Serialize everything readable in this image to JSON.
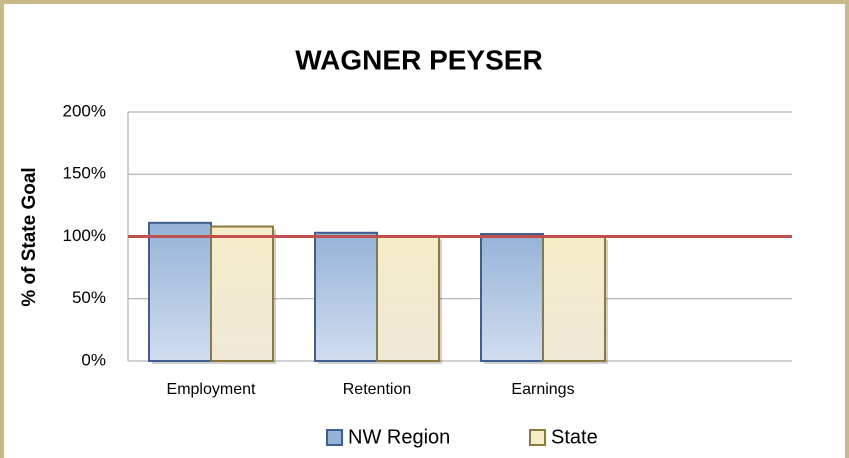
{
  "chart_data": {
    "type": "bar",
    "title": "WAGNER PEYSER",
    "y_label": "% of State Goal",
    "categories": [
      "Employment",
      "Retention",
      "Earnings",
      null
    ],
    "series": [
      {
        "name": "NW Region",
        "color": "#95b3d7",
        "values": [
          111,
          103,
          102,
          null
        ]
      },
      {
        "name": "State",
        "color": "#f5ecc8",
        "values": [
          108,
          100,
          100,
          null
        ]
      }
    ],
    "ylim": [
      0,
      200
    ],
    "yticks": [
      {
        "value": 0,
        "label": "0%"
      },
      {
        "value": 50,
        "label": "50%"
      },
      {
        "value": 100,
        "label": "100%"
      },
      {
        "value": 150,
        "label": "150%"
      },
      {
        "value": 200,
        "label": "200%"
      }
    ],
    "grid": true,
    "reference_line": {
      "value": 100,
      "color": "#c0504d"
    },
    "legend": "bottom"
  }
}
